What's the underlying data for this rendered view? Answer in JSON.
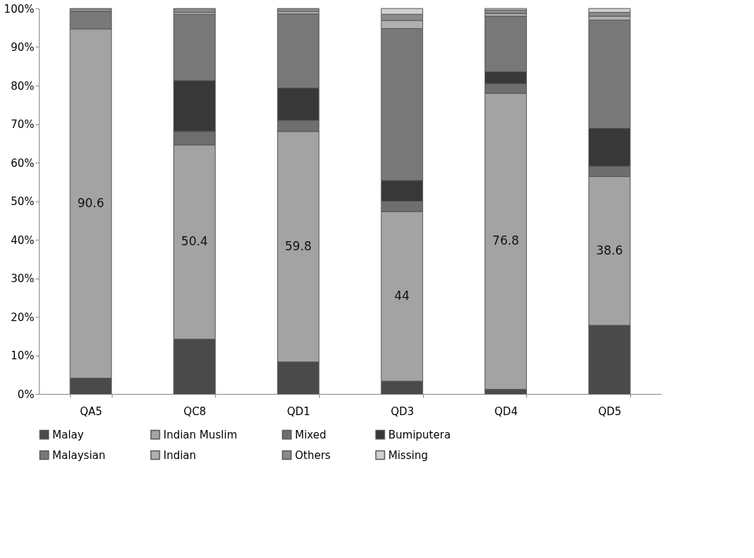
{
  "chart_data": {
    "type": "bar",
    "stacked": true,
    "categories": [
      "QA5",
      "QC8",
      "QD1",
      "QD3",
      "QD4",
      "QD5"
    ],
    "ylim": [
      0,
      100
    ],
    "yticks": [
      {
        "value": 0,
        "label": "0%"
      },
      {
        "value": 10,
        "label": "10%"
      },
      {
        "value": 20,
        "label": "20%"
      },
      {
        "value": 30,
        "label": "30%"
      },
      {
        "value": 40,
        "label": "40%"
      },
      {
        "value": 50,
        "label": "50%"
      },
      {
        "value": 60,
        "label": "60%"
      },
      {
        "value": 70,
        "label": "70%"
      },
      {
        "value": 80,
        "label": "80%"
      },
      {
        "value": 90,
        "label": "90%"
      },
      {
        "value": 100,
        "label": "100%"
      }
    ],
    "grid": false,
    "legend": "bottom",
    "series": [
      {
        "name": "Malay",
        "color": "#4a4a4a",
        "values": [
          4.1,
          14.2,
          8.3,
          3.3,
          1.2,
          17.8
        ]
      },
      {
        "name": "Indian Muslim",
        "color": "#a3a3a3",
        "values": [
          90.6,
          50.4,
          59.8,
          44,
          76.8,
          38.6
        ],
        "value_labels": [
          "90.6",
          "50.4",
          "59.8",
          "44",
          "76.8",
          "38.6"
        ]
      },
      {
        "name": "Mixed",
        "color": "#6e6e6e",
        "values": [
          null,
          3.5,
          2.9,
          2.7,
          2.5,
          2.7
        ]
      },
      {
        "name": "Bumiputera",
        "color": "#383838",
        "values": [
          null,
          13.2,
          8.4,
          5.4,
          3.1,
          9.8
        ]
      },
      {
        "name": "Malaysian",
        "color": "#787878",
        "values": [
          4.5,
          17.2,
          19.2,
          39.4,
          14.4,
          28.1
        ]
      },
      {
        "name": "Indian",
        "color": "#b0b0b0",
        "values": [
          null,
          0.5,
          0.6,
          2.1,
          0.7,
          1.0
        ]
      },
      {
        "name": "Others",
        "color": "#8a8a8a",
        "values": [
          0.8,
          1.0,
          0.8,
          1.6,
          0.9,
          1.0
        ]
      },
      {
        "name": "Missing",
        "color": "#d0d0d0",
        "values": [
          null,
          null,
          null,
          1.5,
          0.4,
          1.0
        ]
      }
    ]
  }
}
